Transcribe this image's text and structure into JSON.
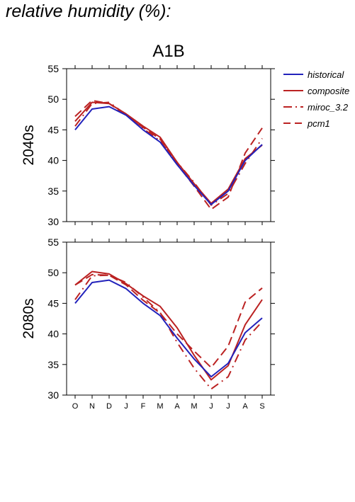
{
  "page": {
    "title": "relative humidity (%):"
  },
  "chart_data": {
    "type": "line",
    "title": "A1B",
    "categories": [
      "O",
      "N",
      "D",
      "J",
      "F",
      "M",
      "A",
      "M",
      "J",
      "J",
      "A",
      "S"
    ],
    "ylim": [
      30,
      55
    ],
    "yticks": [
      30,
      35,
      40,
      45,
      50,
      55
    ],
    "grid": false,
    "legend_position": "right",
    "legend": [
      {
        "name": "historical",
        "color": "#2222bb",
        "style": "solid"
      },
      {
        "name": "composite",
        "color": "#bb2222",
        "style": "solid"
      },
      {
        "name": "miroc_3.2",
        "color": "#bb2222",
        "style": "dashdot"
      },
      {
        "name": "pcm1",
        "color": "#bb2222",
        "style": "dashed"
      }
    ],
    "panels": [
      {
        "label": "2040s",
        "series": [
          {
            "name": "historical",
            "values": [
              45.0,
              48.4,
              48.8,
              47.4,
              45.0,
              43.0,
              39.3,
              35.9,
              32.8,
              35.0,
              40.0,
              42.6
            ]
          },
          {
            "name": "composite",
            "values": [
              46.4,
              49.5,
              49.3,
              47.6,
              45.6,
              43.8,
              39.7,
              36.2,
              33.0,
              35.3,
              40.3,
              42.5
            ]
          },
          {
            "name": "miroc_3.2",
            "values": [
              45.6,
              49.3,
              49.5,
              47.5,
              45.2,
              43.2,
              39.7,
              36.4,
              32.7,
              34.6,
              39.5,
              43.6
            ]
          },
          {
            "name": "pcm1",
            "values": [
              47.2,
              49.8,
              49.3,
              47.4,
              45.4,
              43.5,
              39.4,
              35.8,
              32.0,
              34.0,
              41.2,
              45.3
            ]
          }
        ]
      },
      {
        "label": "2080s",
        "series": [
          {
            "name": "historical",
            "values": [
              45.0,
              48.4,
              48.8,
              47.4,
              45.0,
              43.0,
              39.3,
              35.9,
              33.0,
              35.2,
              40.2,
              42.6
            ]
          },
          {
            "name": "composite",
            "values": [
              48.0,
              50.2,
              49.8,
              48.2,
              46.2,
              44.5,
              41.0,
              36.5,
              32.5,
              34.8,
              41.5,
              45.6
            ]
          },
          {
            "name": "miroc_3.2",
            "values": [
              45.6,
              49.5,
              49.6,
              48.4,
              46.0,
              43.5,
              38.6,
              34.4,
              31.0,
              33.0,
              39.0,
              42.0
            ]
          },
          {
            "name": "pcm1",
            "values": [
              48.0,
              49.7,
              49.6,
              48.0,
              45.5,
              43.4,
              40.0,
              37.2,
              34.5,
              38.0,
              45.2,
              47.5
            ]
          }
        ]
      }
    ]
  }
}
